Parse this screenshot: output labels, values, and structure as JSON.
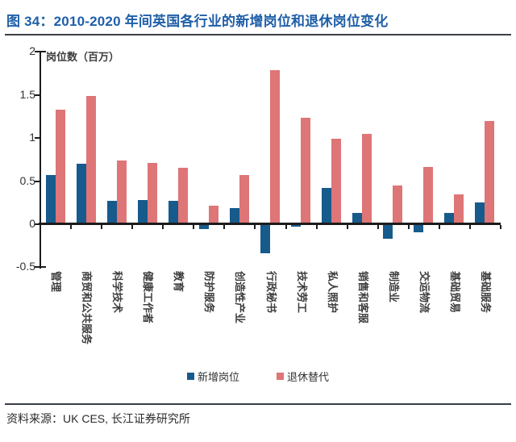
{
  "header": {
    "title": "图 34：2010-2020 年间英国各行业的新增岗位和退休岗位变化"
  },
  "chart_data": {
    "type": "bar",
    "title": "2010-2020 年间英国各行业的新增岗位和退休岗位变化",
    "y_axis_title": "岗位数（百万）",
    "categories": [
      "管理",
      "商贸和公共服务",
      "科学技术",
      "健康工作者",
      "教育",
      "防护服务",
      "创造性产业",
      "行政秘书",
      "技术劳工",
      "私人照护",
      "销售和客服",
      "制造业",
      "交运物流",
      "基础贸易",
      "基础服务"
    ],
    "series": [
      {
        "name": "新增岗位",
        "color": "#175a8c",
        "values": [
          0.55,
          0.68,
          0.25,
          0.26,
          0.25,
          -0.05,
          0.17,
          -0.33,
          -0.02,
          0.4,
          0.11,
          -0.16,
          -0.08,
          0.11,
          0.23
        ]
      },
      {
        "name": "退休替代",
        "color": "#de7577",
        "values": [
          1.31,
          1.47,
          0.72,
          0.69,
          0.64,
          0.2,
          0.55,
          1.77,
          1.22,
          0.97,
          1.03,
          0.43,
          0.65,
          0.33,
          1.18
        ]
      }
    ],
    "y_ticks": [
      "2",
      "1.5",
      "1",
      "0.5",
      "0",
      "-0.5"
    ],
    "ylim": [
      -0.5,
      2
    ],
    "grid": false,
    "legend_position": "bottom"
  },
  "footer": {
    "source": "资料来源：UK CES, 长江证券研究所"
  }
}
